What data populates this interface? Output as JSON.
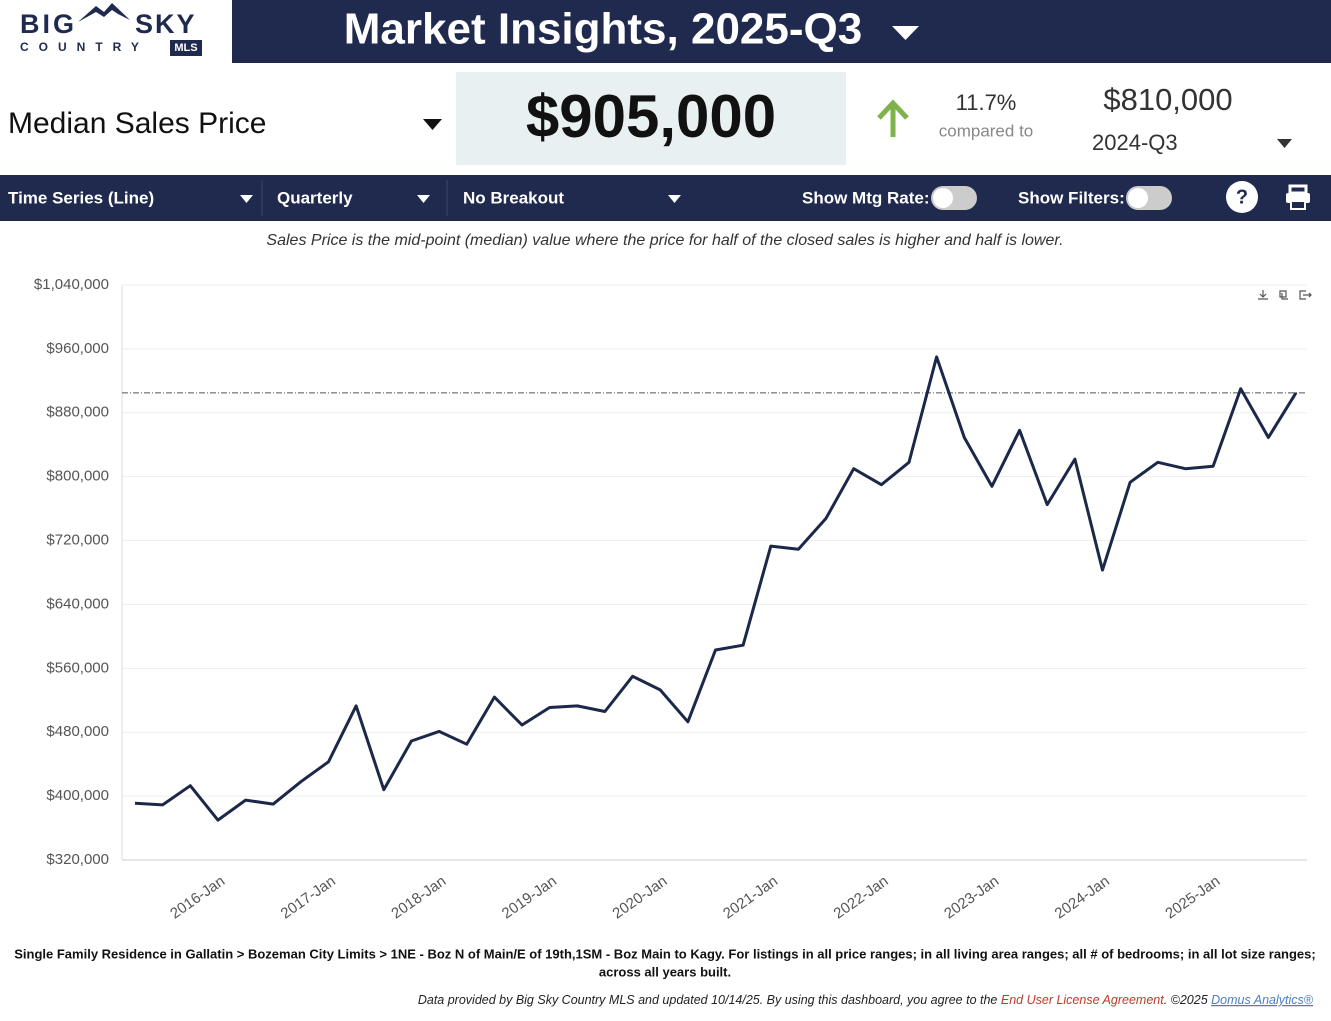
{
  "header": {
    "logo": [
      "BIG",
      "SKY",
      "COUNTRY",
      "MLS"
    ],
    "title": "Market Insights, 2025-Q3"
  },
  "kpi": {
    "metric": "Median Sales Price",
    "value": "$905,000",
    "change": "11.7%",
    "compared_label": "compared to",
    "compared_value": "$810,000",
    "compared_period": "2024-Q3"
  },
  "controls": {
    "chart_type": "Time Series (Line)",
    "interval": "Quarterly",
    "breakout": "No Breakout",
    "mtg_rate": "Show Mtg Rate:",
    "filters": "Show Filters:",
    "help": "?"
  },
  "chart_data": {
    "type": "line",
    "subtitle": "Sales Price is the mid-point (median) value where the price for half of the closed sales is higher and half is lower.",
    "categories": [
      null,
      null,
      null,
      null,
      "2016-Jan",
      null,
      null,
      null,
      "2017-Jan",
      null,
      null,
      null,
      "2018-Jan",
      null,
      null,
      null,
      "2019-Jan",
      null,
      null,
      null,
      "2020-Jan",
      null,
      null,
      null,
      "2021-Jan",
      null,
      null,
      null,
      "2022-Jan",
      null,
      null,
      null,
      "2023-Jan",
      null,
      null,
      null,
      "2024-Jan",
      null,
      null,
      null,
      "2025-Jan",
      null,
      null
    ],
    "values": [
      391000,
      389000,
      413000,
      370000,
      395000,
      390000,
      418000,
      443000,
      513000,
      408000,
      469000,
      481000,
      465000,
      524000,
      489000,
      511000,
      513000,
      506000,
      550000,
      533000,
      493000,
      583000,
      589000,
      713000,
      709000,
      748000,
      810000,
      790000,
      818000,
      950000,
      849000,
      788000,
      858000,
      765000,
      822000,
      683000,
      793000,
      818000,
      810000,
      813000,
      910000,
      849000,
      905000
    ],
    "color": "#1c2849",
    "ylim": [
      320000,
      1040000
    ],
    "yticks": [
      {
        "value": 320000,
        "label": "$320,000"
      },
      {
        "value": 400000,
        "label": "$400,000"
      },
      {
        "value": 480000,
        "label": "$480,000"
      },
      {
        "value": 560000,
        "label": "$560,000"
      },
      {
        "value": 640000,
        "label": "$640,000"
      },
      {
        "value": 720000,
        "label": "$720,000"
      },
      {
        "value": 800000,
        "label": "$800,000"
      },
      {
        "value": 880000,
        "label": "$880,000"
      },
      {
        "value": 960000,
        "label": "$960,000"
      },
      {
        "value": 1040000,
        "label": "$1,040,000"
      }
    ],
    "grid": true
  },
  "footer": {
    "description": [
      "Single Family Residence in Gallatin > Bozeman City Limits > 1NE - Boz N of Main/E of 19th,1SM - Boz Main to Kagy. For listings in all price ranges; in all living area ranges; all # of bedrooms; in all lot size ranges;",
      "across all years built."
    ],
    "notice": "Data provided by Big Sky Country MLS and updated 10/14/25.  By using this dashboard, you agree to the",
    "eula": "End User License Agreement",
    "copyright": ".  ©2025",
    "vendor": "Domus Analytics®"
  }
}
